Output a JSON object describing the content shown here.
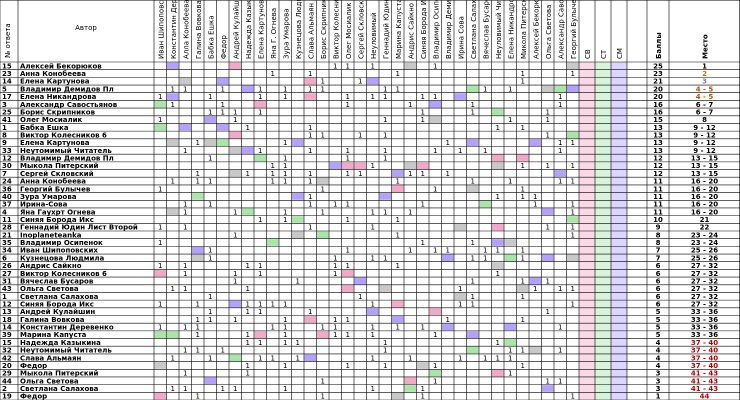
{
  "chart_data": {
    "type": "table",
    "header": {
      "num_label": "№ ответа",
      "author_label": "Автор",
      "sum_labels": [
        "СВ",
        "СТ",
        "СМ"
      ],
      "score_label": "Баллы",
      "place_label": "Место",
      "judges": [
        "Иван Шипоповский",
        "Константин Деревен",
        "Алла Конобеева",
        "Галина Вовкова",
        "Бабка Ешка",
        "Федор",
        "Андрей Кулайшин",
        "Надежда Казыкина",
        "Елена Картунова",
        "Яна Г. Огнева",
        "Зура Умарова",
        "Кузнецова Людмила",
        "Слава Альмаян",
        "Борис Скрипников",
        "Виктор Колесников",
        "Олег Мосиалик",
        "Сергей Скловский",
        "Неуловимый",
        "Геннадий Юдин",
        "Марина Капуста",
        "Андрис Сайкно",
        "Синяя Борода Икс",
        "Владимир Осипенк",
        "Владимир Демидо",
        "Ирина Сова",
        "Светлана Салахова",
        "Вячеслав Бусаров",
        "Неуловимый Читате",
        "Елена Никандрова",
        "Микола Питерский",
        "Алексей Бекорюков",
        "Ольга Светова",
        "Александр Савостьянов",
        "Георгий Булычев"
      ]
    },
    "rows": [
      {
        "num": "15",
        "author": "Алексей Бекорюков",
        "score": "25",
        "place": "1"
      },
      {
        "num": "23",
        "author": "Анна Конобеева",
        "score": "23",
        "place": "2"
      },
      {
        "num": "14",
        "author": "Елена Картунова",
        "score": "21",
        "place": "3"
      },
      {
        "num": "5",
        "author": "Владимир Демидов Пл",
        "score": "20",
        "place": "4 - 5"
      },
      {
        "num": "17",
        "author": "Елена Никандрова",
        "score": "20",
        "place": "4 - 5"
      },
      {
        "num": "3",
        "author": "Александр Савостьянов",
        "score": "16",
        "place": "6 - 7"
      },
      {
        "num": "25",
        "author": "Борис Скрипников",
        "score": "16",
        "place": "6 - 7"
      },
      {
        "num": "41",
        "author": "Олег Мосиалик",
        "score": "15",
        "place": "8"
      },
      {
        "num": "1",
        "author": "Бабка Ешка",
        "score": "13",
        "place": "9 - 12"
      },
      {
        "num": "8",
        "author": "Виктор Колесников 6",
        "score": "13",
        "place": "9 - 12"
      },
      {
        "num": "9",
        "author": "Елена Картунова",
        "score": "13",
        "place": "9 - 12"
      },
      {
        "num": "33",
        "author": "Неутомимый Читатель",
        "score": "13",
        "place": "9 - 12"
      },
      {
        "num": "12",
        "author": "Владимир Демидов Пл",
        "score": "12",
        "place": "13 - 15"
      },
      {
        "num": "30",
        "author": "Мыкола Питерский",
        "score": "12",
        "place": "13 - 15"
      },
      {
        "num": "7",
        "author": "Сергей Скловский",
        "score": "12",
        "place": "13 - 15"
      },
      {
        "num": "24",
        "author": "Анна Конобеева",
        "score": "11",
        "place": "16 - 20"
      },
      {
        "num": "36",
        "author": "Георгий Булычев",
        "score": "11",
        "place": "16 - 20"
      },
      {
        "num": "40",
        "author": "Зура Умарова",
        "score": "11",
        "place": "16 - 20"
      },
      {
        "num": "37",
        "author": "Ирина-Сова",
        "score": "11",
        "place": "16 - 20"
      },
      {
        "num": "4",
        "author": "Яна Гаухрт Огнева",
        "score": "11",
        "place": "16 - 20"
      },
      {
        "num": "11",
        "author": "Синяя Борода Икс",
        "score": "10",
        "place": "21"
      },
      {
        "num": "28",
        "author": "Геннадий Юдин Лист Второй",
        "score": "9",
        "place": "22"
      },
      {
        "num": "21",
        "author": "Inoplaneteanka",
        "score": "8",
        "place": "23 - 24"
      },
      {
        "num": "35",
        "author": "Владимир Осипенок",
        "score": "8",
        "place": "23 - 24"
      },
      {
        "num": "34",
        "author": "Иван Шипоповских",
        "score": "7",
        "place": "25 - 26"
      },
      {
        "num": "6",
        "author": "Кузнецова Людмила",
        "score": "7",
        "place": "25 - 26"
      },
      {
        "num": "26",
        "author": "Андрис Сайкно",
        "score": "6",
        "place": "27 - 32"
      },
      {
        "num": "27",
        "author": "Виктор Колесников 6",
        "score": "6",
        "place": "27 - 32"
      },
      {
        "num": "31",
        "author": "Вячеслав Бусаров",
        "score": "6",
        "place": "27 - 32"
      },
      {
        "num": "43",
        "author": "Ольга Светова",
        "score": "6",
        "place": "27 - 32"
      },
      {
        "num": "1",
        "author": "Светлана Салахова",
        "score": "6",
        "place": "27 - 32"
      },
      {
        "num": "12",
        "author": "Синяя Борода Икс",
        "score": "6",
        "place": "27 - 32"
      },
      {
        "num": "13",
        "author": "Андрей Кулайшин",
        "score": "5",
        "place": "33 - 36"
      },
      {
        "num": "18",
        "author": "Галина Вовкова",
        "score": "5",
        "place": "33 - 36"
      },
      {
        "num": "14",
        "author": "Константин Деревенко",
        "score": "5",
        "place": "33 - 36"
      },
      {
        "num": "39",
        "author": "Марина Капуста",
        "score": "5",
        "place": "33 - 36"
      },
      {
        "num": "15",
        "author": "Надежда Казыкина",
        "score": "4",
        "place": "37 - 40"
      },
      {
        "num": "32",
        "author": "Неутомимый Читатель",
        "score": "4",
        "place": "37 - 40"
      },
      {
        "num": "42",
        "author": "Слава Альмаян",
        "score": "4",
        "place": "37 - 40"
      },
      {
        "num": "20",
        "author": "Федор",
        "score": "4",
        "place": "37 - 40"
      },
      {
        "num": "29",
        "author": "Мыкола Питерский",
        "score": "3",
        "place": "41 - 43"
      },
      {
        "num": "44",
        "author": "Ольга Светова",
        "score": "3",
        "place": "41 - 43"
      },
      {
        "num": "2",
        "author": "Светлана Салахова",
        "score": "3",
        "place": "41 - 43"
      },
      {
        "num": "19",
        "author": "Федор",
        "score": "1",
        "place": "44"
      }
    ],
    "colors": {
      "grid": "#000000",
      "self_vote": "#b3a0ff",
      "pink": "#f4a8c8",
      "green": "#a8e6a8",
      "gray": "#c8c8c8",
      "sv_column": "#f4a8c8",
      "st_column": "#a8e6a8",
      "sm_column": "#b3a0ff",
      "place_gold": "#b08000",
      "place_silver": "#808080",
      "place_bronze": "#c05000",
      "place_red": "#c00000"
    }
  }
}
